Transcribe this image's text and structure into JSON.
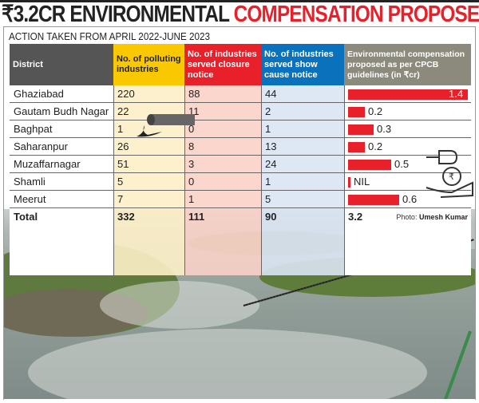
{
  "title": {
    "part1": "₹3.2CR ENVIRONMENTAL",
    "part2": "COMPENSATION PROPOSED"
  },
  "subtitle": "ACTION TAKEN FROM APRIL 2022-JUNE 2023",
  "colors": {
    "district_header": "#555555",
    "polluting": "#f9c800",
    "closure": "#e8202a",
    "show_cause": "#0a72bd",
    "compensation": "#8c8a7c",
    "bar": "#e8202a"
  },
  "headers": [
    "District",
    "No. of polluting industries",
    "No. of industries served closure notice",
    "No. of industries served show cause notice",
    "Environmental compensation proposed as per CPCB guidelines (in ₹cr)"
  ],
  "rows": [
    {
      "district": "Ghaziabad",
      "polluting": "220",
      "closure": "88",
      "show_cause": "44",
      "compensation": "1.4"
    },
    {
      "district": "Gautam Budh Nagar",
      "polluting": "22",
      "closure": "11",
      "show_cause": "2",
      "compensation": "0.2"
    },
    {
      "district": "Baghpat",
      "polluting": "1",
      "closure": "0",
      "show_cause": "1",
      "compensation": "0.3"
    },
    {
      "district": "Saharanpur",
      "polluting": "26",
      "closure": "8",
      "show_cause": "13",
      "compensation": "0.2"
    },
    {
      "district": "Muzaffarnagar",
      "polluting": "51",
      "closure": "3",
      "show_cause": "24",
      "compensation": "0.5"
    },
    {
      "district": "Shamli",
      "polluting": "5",
      "closure": "0",
      "show_cause": "1",
      "compensation": "NIL"
    },
    {
      "district": "Meerut",
      "polluting": "7",
      "closure": "1",
      "show_cause": "5",
      "compensation": "0.6"
    }
  ],
  "total": {
    "label": "Total",
    "polluting": "332",
    "closure": "111",
    "show_cause": "90",
    "compensation": "3.2"
  },
  "credit": {
    "label": "Photo:",
    "name": "Umesh Kumar"
  },
  "icons": [
    "pipe-discharge-icon",
    "money-bag-hand-icon"
  ],
  "chart_data": {
    "type": "table",
    "categories": [
      "Ghaziabad",
      "Gautam Budh Nagar",
      "Baghpat",
      "Saharanpur",
      "Muzaffarnagar",
      "Shamli",
      "Meerut"
    ],
    "series": [
      {
        "name": "No. of polluting industries",
        "values": [
          220,
          22,
          1,
          26,
          51,
          5,
          7
        ]
      },
      {
        "name": "No. of industries served closure notice",
        "values": [
          88,
          11,
          0,
          8,
          3,
          0,
          1
        ]
      },
      {
        "name": "No. of industries served show cause notice",
        "values": [
          44,
          2,
          1,
          13,
          24,
          1,
          5
        ]
      },
      {
        "name": "Environmental compensation proposed as per CPCB guidelines (in ₹cr)",
        "values": [
          1.4,
          0.2,
          0.3,
          0.2,
          0.5,
          0,
          0.6
        ]
      }
    ]
  }
}
